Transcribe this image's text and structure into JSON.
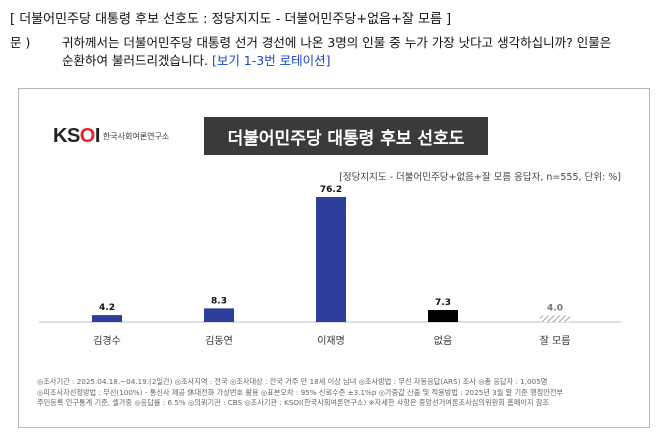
{
  "heading": "[ 더불어민주당 대통령 후보 선호도 : 정당지지도 - 더불어민주당+없음+잘 모름 ]",
  "question": {
    "mark": "문 )",
    "text": "귀하께서는 더불어민주당 대통령 선거 경선에 나온 3명의 인물 중 누가 가장 낫다고 생각하십니까? 인물은 순환하여 불러드리겠습니다.",
    "note": "[보기 1-3번 로테이션]"
  },
  "logo": {
    "mark_k": "K",
    "mark_s": "S",
    "mark_o": "O",
    "mark_i": "I",
    "org_name": "한국사회여론연구소"
  },
  "chart_data": {
    "type": "bar",
    "title": "더불어민주당 대통령 후보 선호도",
    "subtitle": "[정당지지도 - 더불어민주당+없음+잘 모름 응답자, n=555, 단위: %]",
    "categories": [
      "김경수",
      "김동연",
      "이재명",
      "없음",
      "잘 모름"
    ],
    "values": [
      4.2,
      8.3,
      76.2,
      7.3,
      4.0
    ],
    "value_labels": [
      "4.2",
      "8.3",
      "76.2",
      "7.3",
      "4.0"
    ],
    "colors": [
      "#2c3e99",
      "#2c3e99",
      "#2c3e99",
      "#000000",
      "#9a9a9a"
    ],
    "patterns": [
      "solid",
      "solid",
      "solid",
      "solid",
      "hatch"
    ],
    "ylim": [
      0,
      80
    ],
    "grid": false
  },
  "footer": {
    "line1": "◎조사기간 : 2025.04.18.~04.19.(2일간)  ◎조사지역 : 전국  ◎조사대상 : 전국 거주 만 18세 이상 남녀  ◎조사방법 : 무선 자동응답(ARS) 조사  ◎총 응답자 : 1,005명",
    "line2": "◎피조사자선정방법 : 무선(100%) - 통신사 제공 休대전화 가상번호 활용  ◎표본오차 : 95% 신뢰수준 ±3.1%p  ◎가중값 산출 및 적용방법 : 2025년 3월 말 기준 행정안전부",
    "line3": "주민등록 인구통계 기준, 셀가중  ◎응답률 : 6.5%  ◎의뢰기관 : CBS  ◎조사기관 : KSOI(한국사회여론연구소)  ※자세한 사항은 중앙선거여론조사심의위원회 홈페이지 참조"
  }
}
